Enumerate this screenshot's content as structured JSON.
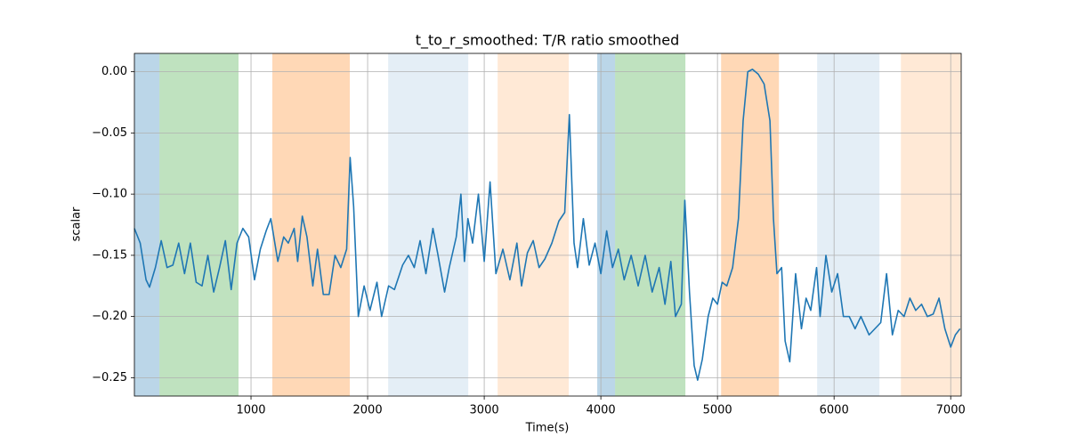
{
  "chart_data": {
    "type": "line",
    "title": "t_to_r_smoothed: T/R ratio smoothed",
    "x_label": "Time(s)",
    "y_label": "scalar",
    "xlim": [
      0,
      7090
    ],
    "ylim": [
      -0.265,
      0.015
    ],
    "xticks": [
      1000,
      2000,
      3000,
      4000,
      5000,
      6000,
      7000
    ],
    "yticks": [
      {
        "value": 0,
        "label": "0.00"
      },
      {
        "value": -0.05,
        "label": "−0.05"
      },
      {
        "value": -0.1,
        "label": "−0.10"
      },
      {
        "value": -0.15,
        "label": "−0.15"
      },
      {
        "value": -0.2,
        "label": "−0.20"
      },
      {
        "value": -0.25,
        "label": "−0.25"
      }
    ],
    "grid": true,
    "spans": [
      {
        "start": 0,
        "end": 215,
        "color": "#1f77b4",
        "opacity": 0.3
      },
      {
        "start": 215,
        "end": 893,
        "color": "#2ca02c",
        "opacity": 0.3
      },
      {
        "start": 1183,
        "end": 1847,
        "color": "#ff7f0e",
        "opacity": 0.3
      },
      {
        "start": 2176,
        "end": 2863,
        "color": "#1f77b4",
        "opacity": 0.12
      },
      {
        "start": 3115,
        "end": 3725,
        "color": "#ff7f0e",
        "opacity": 0.17
      },
      {
        "start": 3969,
        "end": 4122,
        "color": "#1f77b4",
        "opacity": 0.3
      },
      {
        "start": 4122,
        "end": 4725,
        "color": "#2ca02c",
        "opacity": 0.3
      },
      {
        "start": 5031,
        "end": 5527,
        "color": "#ff7f0e",
        "opacity": 0.3
      },
      {
        "start": 5855,
        "end": 6389,
        "color": "#1f77b4",
        "opacity": 0.12
      },
      {
        "start": 6573,
        "end": 7090,
        "color": "#ff7f0e",
        "opacity": 0.17
      }
    ],
    "x": [
      0,
      50,
      100,
      130,
      180,
      230,
      280,
      330,
      380,
      430,
      480,
      530,
      580,
      630,
      680,
      730,
      780,
      830,
      880,
      930,
      980,
      1030,
      1080,
      1130,
      1170,
      1230,
      1280,
      1320,
      1370,
      1400,
      1440,
      1480,
      1530,
      1570,
      1620,
      1670,
      1720,
      1770,
      1820,
      1850,
      1880,
      1920,
      1970,
      2020,
      2080,
      2120,
      2180,
      2230,
      2300,
      2350,
      2400,
      2450,
      2500,
      2560,
      2600,
      2660,
      2700,
      2760,
      2800,
      2830,
      2860,
      2900,
      2950,
      3000,
      3050,
      3100,
      3160,
      3220,
      3280,
      3320,
      3370,
      3420,
      3470,
      3520,
      3580,
      3640,
      3690,
      3730,
      3770,
      3800,
      3850,
      3900,
      3950,
      4000,
      4050,
      4100,
      4150,
      4200,
      4260,
      4320,
      4380,
      4440,
      4500,
      4550,
      4600,
      4640,
      4690,
      4720,
      4760,
      4800,
      4830,
      4870,
      4920,
      4960,
      5000,
      5040,
      5080,
      5130,
      5180,
      5220,
      5260,
      5300,
      5350,
      5400,
      5450,
      5480,
      5510,
      5550,
      5580,
      5620,
      5670,
      5720,
      5760,
      5800,
      5850,
      5880,
      5930,
      5980,
      6030,
      6080,
      6130,
      6180,
      6230,
      6300,
      6350,
      6400,
      6450,
      6500,
      6550,
      6600,
      6650,
      6700,
      6750,
      6800,
      6850,
      6900,
      6950,
      7000,
      7040,
      7080
    ],
    "series": [
      {
        "name": "t_to_r_smoothed",
        "color": "#1f77b4",
        "values": [
          -0.128,
          -0.14,
          -0.17,
          -0.176,
          -0.16,
          -0.138,
          -0.16,
          -0.158,
          -0.14,
          -0.165,
          -0.14,
          -0.172,
          -0.175,
          -0.15,
          -0.18,
          -0.16,
          -0.138,
          -0.178,
          -0.14,
          -0.128,
          -0.135,
          -0.17,
          -0.145,
          -0.13,
          -0.12,
          -0.155,
          -0.135,
          -0.14,
          -0.128,
          -0.155,
          -0.118,
          -0.135,
          -0.175,
          -0.145,
          -0.182,
          -0.182,
          -0.15,
          -0.16,
          -0.145,
          -0.07,
          -0.11,
          -0.2,
          -0.175,
          -0.195,
          -0.172,
          -0.2,
          -0.175,
          -0.178,
          -0.158,
          -0.15,
          -0.16,
          -0.138,
          -0.165,
          -0.128,
          -0.148,
          -0.18,
          -0.16,
          -0.135,
          -0.1,
          -0.155,
          -0.12,
          -0.14,
          -0.1,
          -0.155,
          -0.09,
          -0.165,
          -0.145,
          -0.17,
          -0.14,
          -0.175,
          -0.148,
          -0.138,
          -0.16,
          -0.153,
          -0.14,
          -0.122,
          -0.115,
          -0.035,
          -0.14,
          -0.16,
          -0.12,
          -0.158,
          -0.14,
          -0.165,
          -0.13,
          -0.16,
          -0.145,
          -0.17,
          -0.15,
          -0.175,
          -0.15,
          -0.18,
          -0.16,
          -0.19,
          -0.155,
          -0.2,
          -0.19,
          -0.105,
          -0.18,
          -0.24,
          -0.252,
          -0.235,
          -0.2,
          -0.185,
          -0.19,
          -0.172,
          -0.175,
          -0.16,
          -0.12,
          -0.04,
          0.0,
          0.002,
          -0.002,
          -0.01,
          -0.04,
          -0.12,
          -0.165,
          -0.16,
          -0.22,
          -0.237,
          -0.165,
          -0.21,
          -0.185,
          -0.195,
          -0.16,
          -0.2,
          -0.15,
          -0.18,
          -0.165,
          -0.2,
          -0.2,
          -0.21,
          -0.2,
          -0.215,
          -0.21,
          -0.205,
          -0.165,
          -0.215,
          -0.195,
          -0.2,
          -0.185,
          -0.195,
          -0.19,
          -0.2,
          -0.198,
          -0.185,
          -0.21,
          -0.225,
          -0.215,
          -0.21
        ]
      }
    ]
  }
}
